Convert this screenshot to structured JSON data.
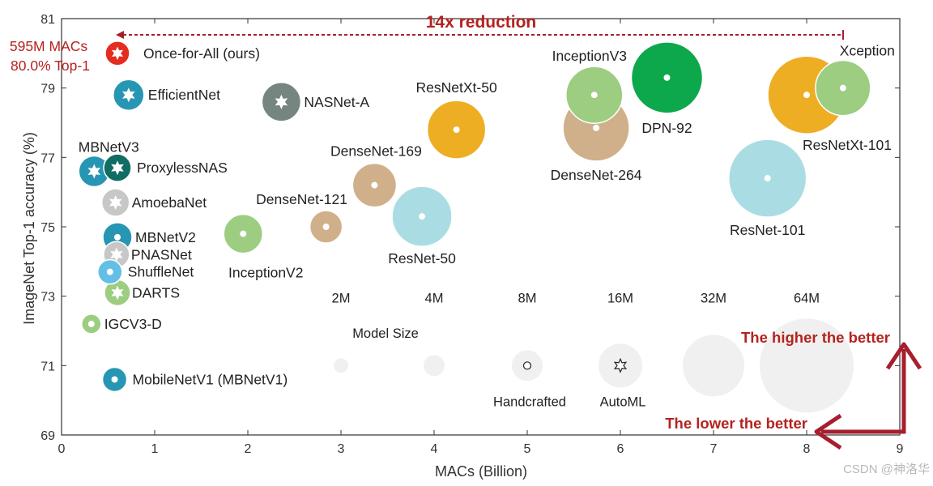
{
  "chart_data": {
    "type": "scatter",
    "xlabel": "MACs (Billion)",
    "ylabel": "ImageNet Top-1 accuracy (%)",
    "xlim": [
      0,
      9
    ],
    "ylim": [
      69,
      81
    ],
    "xticks": [
      0,
      1,
      2,
      3,
      4,
      5,
      6,
      7,
      8,
      9
    ],
    "yticks": [
      69,
      71,
      73,
      75,
      77,
      79,
      81
    ],
    "grid": false,
    "points": [
      {
        "name": "Once-for-All (ours)",
        "x": 0.6,
        "y": 80.0,
        "r": 15,
        "color": "#e42c21",
        "marker": "star6",
        "labelDx": 32,
        "labelDy": 0,
        "anchor": "start"
      },
      {
        "name": "EfficientNet",
        "x": 0.72,
        "y": 78.8,
        "r": 19,
        "color": "#2796b2",
        "marker": "star6",
        "labelDx": 24,
        "labelDy": 0,
        "anchor": "start"
      },
      {
        "name": "NASNet-A",
        "x": 2.36,
        "y": 78.6,
        "r": 24,
        "color": "#758681",
        "marker": "star6",
        "labelDx": 28,
        "labelDy": 0,
        "anchor": "start"
      },
      {
        "name": "MBNetV3",
        "x": 0.35,
        "y": 76.6,
        "r": 19,
        "color": "#2796b2",
        "marker": "star6",
        "labelDx": 18,
        "labelDy": -30,
        "anchor": "middle"
      },
      {
        "name": "ProxylessNAS",
        "x": 0.6,
        "y": 76.7,
        "r": 17,
        "color": "#116c63",
        "marker": "star6",
        "labelDx": 24,
        "labelDy": 0,
        "anchor": "start"
      },
      {
        "name": "AmoebaNet",
        "x": 0.58,
        "y": 75.7,
        "r": 17,
        "color": "#c7c7c7",
        "marker": "star6",
        "labelDx": 20,
        "labelDy": 0,
        "anchor": "start"
      },
      {
        "name": "MBNetV2",
        "x": 0.6,
        "y": 74.7,
        "r": 18,
        "color": "#2796b2",
        "marker": "circle",
        "labelDx": 22,
        "labelDy": 0,
        "anchor": "start"
      },
      {
        "name": "PNASNet",
        "x": 0.59,
        "y": 74.2,
        "r": 16,
        "color": "#c7c7c7",
        "marker": "star6",
        "labelDx": 18,
        "labelDy": 0,
        "anchor": "start"
      },
      {
        "name": "ShuffleNet",
        "x": 0.52,
        "y": 73.7,
        "r": 15,
        "color": "#63bfe5",
        "marker": "circle",
        "labelDx": 22,
        "labelDy": 0,
        "anchor": "start"
      },
      {
        "name": "DARTS",
        "x": 0.6,
        "y": 73.1,
        "r": 16,
        "color": "#9ccd81",
        "marker": "star6",
        "labelDx": 18,
        "labelDy": 0,
        "anchor": "start"
      },
      {
        "name": "IGCV3-D",
        "x": 0.32,
        "y": 72.2,
        "r": 12,
        "color": "#9ccd81",
        "marker": "circle",
        "labelDx": 16,
        "labelDy": 0,
        "anchor": "start"
      },
      {
        "name": "MobileNetV1 (MBNetV1)",
        "x": 0.57,
        "y": 70.6,
        "r": 15,
        "color": "#2796b2",
        "marker": "circle",
        "labelDx": 22,
        "labelDy": 0,
        "anchor": "start"
      },
      {
        "name": "InceptionV2",
        "x": 1.95,
        "y": 74.8,
        "r": 24,
        "color": "#9ccd81",
        "marker": "circle",
        "labelDx": 28,
        "labelDy": 48,
        "anchor": "middle"
      },
      {
        "name": "DenseNet-121",
        "x": 2.84,
        "y": 75.0,
        "r": 20,
        "color": "#cfb08a",
        "marker": "circle",
        "labelDx": -30,
        "labelDy": -34,
        "anchor": "middle"
      },
      {
        "name": "DenseNet-169",
        "x": 3.36,
        "y": 76.2,
        "r": 27,
        "color": "#cfb08a",
        "marker": "circle",
        "labelDx": 2,
        "labelDy": -42,
        "anchor": "middle"
      },
      {
        "name": "ResNet-50",
        "x": 3.87,
        "y": 75.3,
        "r": 37,
        "color": "#aadde3",
        "marker": "circle",
        "labelDx": 0,
        "labelDy": 52,
        "anchor": "middle"
      },
      {
        "name": "ResNetXt-50",
        "x": 4.24,
        "y": 77.8,
        "r": 36,
        "color": "#eeae23",
        "marker": "circle",
        "labelDx": 0,
        "labelDy": -52,
        "anchor": "middle"
      },
      {
        "name": "DenseNet-264",
        "x": 5.74,
        "y": 77.85,
        "r": 41,
        "color": "#cfb08a",
        "marker": "circle",
        "labelDx": 0,
        "labelDy": 58,
        "anchor": "middle"
      },
      {
        "name": "InceptionV3",
        "x": 5.72,
        "y": 78.8,
        "r": 35,
        "color": "#9ccd81",
        "marker": "circle",
        "labelDx": -6,
        "labelDy": -48,
        "anchor": "middle"
      },
      {
        "name": "DPN-92",
        "x": 6.5,
        "y": 79.3,
        "r": 44,
        "color": "#0da84c",
        "marker": "circle",
        "labelDx": 0,
        "labelDy": 62,
        "anchor": "middle"
      },
      {
        "name": "ResNet-101",
        "x": 7.58,
        "y": 76.4,
        "r": 48,
        "color": "#aadde3",
        "marker": "circle",
        "labelDx": 0,
        "labelDy": 64,
        "anchor": "middle"
      },
      {
        "name": "ResNetXt-101",
        "x": 8.0,
        "y": 78.8,
        "r": 48,
        "color": "#eeae23",
        "marker": "circle",
        "labelDx": 50,
        "labelDy": 62,
        "anchor": "middle"
      },
      {
        "name": "Xception",
        "x": 8.39,
        "y": 79.0,
        "r": 34,
        "color": "#9ccd81",
        "marker": "circle",
        "labelDx": 30,
        "labelDy": -46,
        "anchor": "middle"
      }
    ],
    "model_size_legend": {
      "title": "Model Size",
      "sizes": [
        {
          "label": "2M",
          "x": 3.0,
          "r": 9
        },
        {
          "label": "4M",
          "x": 4.0,
          "r": 13
        },
        {
          "label": "8M",
          "x": 5.0,
          "r": 19
        },
        {
          "label": "16M",
          "x": 6.0,
          "r": 27
        },
        {
          "label": "32M",
          "x": 7.0,
          "r": 38
        },
        {
          "label": "64M",
          "x": 8.0,
          "r": 58
        }
      ],
      "y": 71.0,
      "color": "#f0f0f0",
      "marker_labels": [
        {
          "label": "Handcrafted",
          "x": 5.0,
          "marker": "circle"
        },
        {
          "label": "AutoML",
          "x": 6.0,
          "marker": "star6"
        }
      ]
    }
  },
  "annotations": {
    "ofa_macs": "595M MACs",
    "ofa_top1": "80.0% Top-1",
    "reduction": "14x reduction",
    "higher_better": "The higher the better",
    "lower_better": "The lower the better",
    "accent_color": "#b5231f",
    "arrow_color": "#a61f2e"
  },
  "watermark": "CSDN @神洛华"
}
